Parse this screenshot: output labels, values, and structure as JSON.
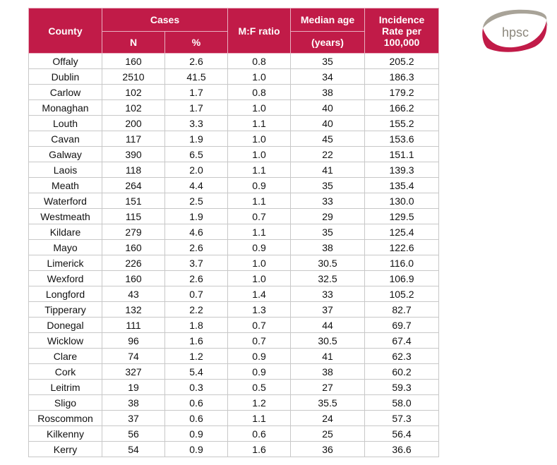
{
  "logo_text": "hpsc",
  "colors": {
    "header_bg": "#c11b48",
    "header_text": "#ffffff",
    "logo_red": "#c11b48",
    "logo_grey": "#a8a398"
  },
  "headers": {
    "county": "County",
    "cases": "Cases",
    "n": "N",
    "pct": "%",
    "mf": "M:F ratio",
    "median_age": "Median age",
    "median_age_unit": "(years)",
    "incidence": "Incidence Rate per 100,000"
  },
  "rows": [
    [
      "Offaly",
      "160",
      "2.6",
      "0.8",
      "35",
      "205.2"
    ],
    [
      "Dublin",
      "2510",
      "41.5",
      "1.0",
      "34",
      "186.3"
    ],
    [
      "Carlow",
      "102",
      "1.7",
      "0.8",
      "38",
      "179.2"
    ],
    [
      "Monaghan",
      "102",
      "1.7",
      "1.0",
      "40",
      "166.2"
    ],
    [
      "Louth",
      "200",
      "3.3",
      "1.1",
      "40",
      "155.2"
    ],
    [
      "Cavan",
      "117",
      "1.9",
      "1.0",
      "45",
      "153.6"
    ],
    [
      "Galway",
      "390",
      "6.5",
      "1.0",
      "22",
      "151.1"
    ],
    [
      "Laois",
      "118",
      "2.0",
      "1.1",
      "41",
      "139.3"
    ],
    [
      "Meath",
      "264",
      "4.4",
      "0.9",
      "35",
      "135.4"
    ],
    [
      "Waterford",
      "151",
      "2.5",
      "1.1",
      "33",
      "130.0"
    ],
    [
      "Westmeath",
      "115",
      "1.9",
      "0.7",
      "29",
      "129.5"
    ],
    [
      "Kildare",
      "279",
      "4.6",
      "1.1",
      "35",
      "125.4"
    ],
    [
      "Mayo",
      "160",
      "2.6",
      "0.9",
      "38",
      "122.6"
    ],
    [
      "Limerick",
      "226",
      "3.7",
      "1.0",
      "30.5",
      "116.0"
    ],
    [
      "Wexford",
      "160",
      "2.6",
      "1.0",
      "32.5",
      "106.9"
    ],
    [
      "Longford",
      "43",
      "0.7",
      "1.4",
      "33",
      "105.2"
    ],
    [
      "Tipperary",
      "132",
      "2.2",
      "1.3",
      "37",
      "82.7"
    ],
    [
      "Donegal",
      "111",
      "1.8",
      "0.7",
      "44",
      "69.7"
    ],
    [
      "Wicklow",
      "96",
      "1.6",
      "0.7",
      "30.5",
      "67.4"
    ],
    [
      "Clare",
      "74",
      "1.2",
      "0.9",
      "41",
      "62.3"
    ],
    [
      "Cork",
      "327",
      "5.4",
      "0.9",
      "38",
      "60.2"
    ],
    [
      "Leitrim",
      "19",
      "0.3",
      "0.5",
      "27",
      "59.3"
    ],
    [
      "Sligo",
      "38",
      "0.6",
      "1.2",
      "35.5",
      "58.0"
    ],
    [
      "Roscommon",
      "37",
      "0.6",
      "1.1",
      "24",
      "57.3"
    ],
    [
      "Kilkenny",
      "56",
      "0.9",
      "0.6",
      "25",
      "56.4"
    ],
    [
      "Kerry",
      "54",
      "0.9",
      "1.6",
      "36",
      "36.6"
    ]
  ]
}
